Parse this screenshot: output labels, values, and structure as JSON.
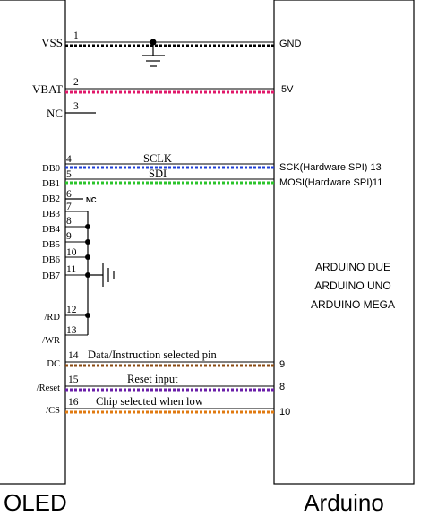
{
  "oled": {
    "caption": "OLED",
    "pins": {
      "vss": "VSS",
      "vbat": "VBAT",
      "nc": "NC",
      "db0": "DB0",
      "db1": "DB1",
      "db2": "DB2",
      "db3": "DB3",
      "db4": "DB4",
      "db5": "DB5",
      "db6": "DB6",
      "db7": "DB7",
      "rd": "/RD",
      "wr": "/WR",
      "dc": "DC",
      "reset": "/Reset",
      "cs": "/CS"
    },
    "pin_numbers": [
      "1",
      "2",
      "3",
      "4",
      "5",
      "6",
      "7",
      "8",
      "9",
      "10",
      "11",
      "12",
      "13",
      "14",
      "15",
      "16"
    ],
    "nc_label": "NC"
  },
  "arduino": {
    "caption": "Arduino",
    "pins": {
      "gnd": "GND",
      "v5": "5V",
      "sck": "SCK(Hardware SPI) 13",
      "mosi": "MOSI(Hardware SPI)11",
      "p9": "9",
      "p8": "8",
      "p10": "10"
    },
    "boards": [
      "ARDUINO DUE",
      "ARDUINO UNO",
      "ARDUINO MEGA"
    ]
  },
  "signals": {
    "sclk": "SCLK",
    "sdi": "SDI",
    "dc": "Data/Instruction selected pin",
    "reset": "Reset input",
    "cs": "Chip selected when low"
  },
  "wire_colors": {
    "gnd": "#000000",
    "vbat": "#e0186a",
    "sclk": "#1f3fd6",
    "sdi": "#2bc42b",
    "dc": "#8a4a12",
    "reset": "#6a1ea8",
    "cs": "#e07a10"
  }
}
